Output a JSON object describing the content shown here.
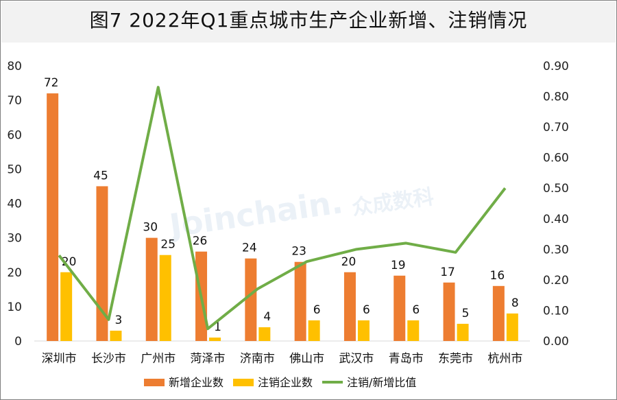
{
  "title": "图7  2022年Q1重点城市生产企业新增、注销情况",
  "watermark": "Joinchain.众成数科",
  "chart_data": {
    "type": "bar",
    "categories": [
      "深圳市",
      "长沙市",
      "广州市",
      "菏泽市",
      "济南市",
      "佛山市",
      "武汉市",
      "青岛市",
      "东莞市",
      "杭州市"
    ],
    "series": [
      {
        "name": "新增企业数",
        "type": "bar",
        "axis": "left",
        "color": "#ed7d31",
        "values": [
          72,
          45,
          30,
          26,
          24,
          23,
          20,
          19,
          17,
          16
        ]
      },
      {
        "name": "注销企业数",
        "type": "bar",
        "axis": "left",
        "color": "#ffc000",
        "values": [
          20,
          3,
          25,
          1,
          4,
          6,
          6,
          6,
          5,
          8
        ]
      },
      {
        "name": "注销/新增比值",
        "type": "line",
        "axis": "right",
        "color": "#70ad47",
        "values": [
          0.28,
          0.07,
          0.83,
          0.04,
          0.17,
          0.26,
          0.3,
          0.32,
          0.29,
          0.5
        ]
      }
    ],
    "y_left": {
      "min": 0,
      "max": 80,
      "ticks": [
        "0",
        "10",
        "20",
        "30",
        "40",
        "50",
        "60",
        "70",
        "80"
      ]
    },
    "y_right": {
      "min": 0,
      "max": 0.9,
      "ticks": [
        "0.00",
        "0.10",
        "0.20",
        "0.30",
        "0.40",
        "0.50",
        "0.60",
        "0.70",
        "0.80",
        "0.90"
      ]
    },
    "grid": false,
    "legend_position": "bottom"
  }
}
